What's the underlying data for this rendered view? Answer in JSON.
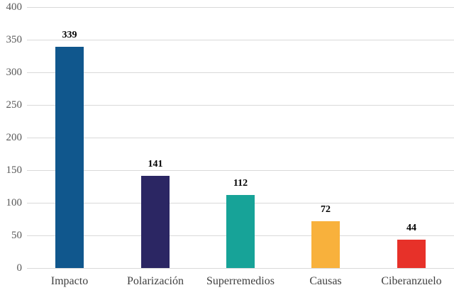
{
  "chart_data": {
    "type": "bar",
    "title": "",
    "xlabel": "",
    "ylabel": "",
    "categories": [
      "Impacto",
      "Polarización",
      "Superremedios",
      "Causas",
      "Ciberanzuelo"
    ],
    "values": [
      339,
      141,
      112,
      72,
      44
    ],
    "value_labels": [
      "339",
      "141",
      "112",
      "72",
      "44"
    ],
    "bar_colors": [
      "#10578d",
      "#2b2663",
      "#17a398",
      "#f8b13c",
      "#e73129"
    ],
    "ylim": [
      0,
      400
    ],
    "yticks": [
      0,
      50,
      100,
      150,
      200,
      250,
      300,
      350,
      400
    ],
    "ytick_labels": [
      "0",
      "50",
      "100",
      "150",
      "200",
      "250",
      "300",
      "350",
      "400"
    ],
    "grid": "horizontal",
    "legend": "none",
    "colors": {
      "background": "#ffffff",
      "grid_line": "#d9d9d9",
      "y_tick_text": "#595959",
      "x_label_text": "#3f3f3f",
      "value_label_text": "#000000"
    }
  }
}
